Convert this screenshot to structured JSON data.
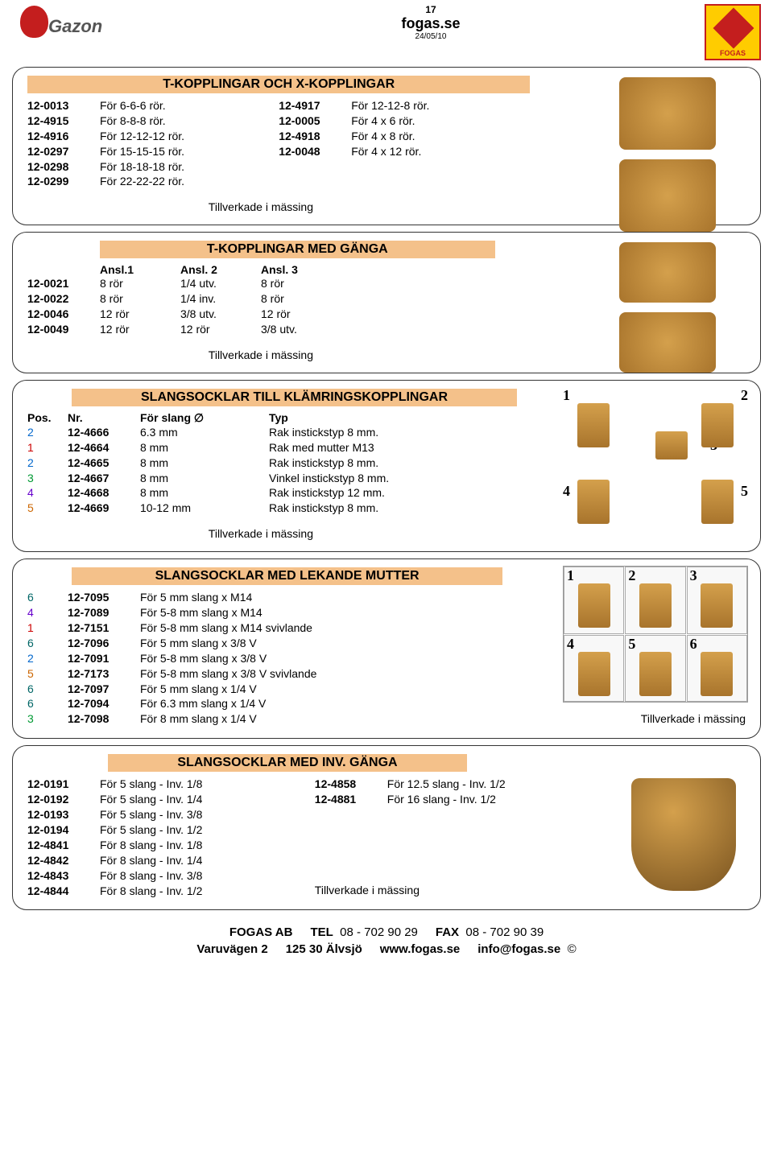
{
  "header": {
    "page_num": "17",
    "site": "fogas.se",
    "date": "24/05/10",
    "gazon_text": "Gazon",
    "fogas_label": "FOGAS"
  },
  "section1": {
    "title": "T-KOPPLINGAR OCH X-KOPPLINGAR",
    "left": [
      {
        "code": "12-0013",
        "desc": "För 6-6-6 rör."
      },
      {
        "code": "12-4915",
        "desc": "För 8-8-8 rör."
      },
      {
        "code": "12-4916",
        "desc": "För 12-12-12 rör."
      },
      {
        "code": "12-0297",
        "desc": "För 15-15-15 rör."
      },
      {
        "code": "12-0298",
        "desc": "För 18-18-18 rör."
      },
      {
        "code": "12-0299",
        "desc": "För 22-22-22 rör."
      }
    ],
    "right": [
      {
        "code": "12-4917",
        "desc": "För 12-12-8 rör."
      },
      {
        "code": "12-0005",
        "desc": "För 4 x 6 rör."
      },
      {
        "code": "12-4918",
        "desc": "För 4 x 8 rör."
      },
      {
        "code": "12-0048",
        "desc": "För 4 x 12 rör."
      }
    ],
    "note": "Tillverkade i mässing"
  },
  "section2": {
    "title": "T-KOPPLINGAR MED GÄNGA",
    "headers": [
      "Ansl.1",
      "Ansl. 2",
      "Ansl. 3"
    ],
    "rows": [
      {
        "code": "12-0021",
        "c1": "8 rör",
        "c2": "1/4 utv.",
        "c3": "8 rör"
      },
      {
        "code": "12-0022",
        "c1": "8 rör",
        "c2": "1/4 inv.",
        "c3": "8 rör"
      },
      {
        "code": "12-0046",
        "c1": "12 rör",
        "c2": "3/8 utv.",
        "c3": "12 rör"
      },
      {
        "code": "12-0049",
        "c1": "12 rör",
        "c2": "12 rör",
        "c3": "3/8 utv."
      }
    ],
    "note": "Tillverkade i mässing"
  },
  "section3": {
    "title": "SLANGSOCKLAR TILL KLÄMRINGSKOPPLINGAR",
    "col_headers": {
      "pos": "Pos.",
      "nr": "Nr.",
      "slang": "För slang ∅",
      "typ": "Typ"
    },
    "rows": [
      {
        "pos": "2",
        "nr": "12-4666",
        "slang": "6.3 mm",
        "typ": "Rak instickstyp 8 mm."
      },
      {
        "pos": "1",
        "nr": "12-4664",
        "slang": "8 mm",
        "typ": "Rak med mutter M13"
      },
      {
        "pos": "2",
        "nr": "12-4665",
        "slang": "8 mm",
        "typ": "Rak instickstyp 8 mm."
      },
      {
        "pos": "3",
        "nr": "12-4667",
        "slang": "8 mm",
        "typ": "Vinkel instickstyp 8 mm."
      },
      {
        "pos": "4",
        "nr": "12-4668",
        "slang": "8 mm",
        "typ": "Rak instickstyp 12 mm."
      },
      {
        "pos": "5",
        "nr": "12-4669",
        "slang": "10-12 mm",
        "typ": "Rak instickstyp 8 mm."
      }
    ],
    "grid_nums": [
      "1",
      "2",
      "3",
      "4",
      "5"
    ],
    "note": "Tillverkade i mässing"
  },
  "section4": {
    "title": "SLANGSOCKLAR MED LEKANDE MUTTER",
    "rows": [
      {
        "pos": "6",
        "nr": "12-7095",
        "desc": "För 5 mm slang x M14"
      },
      {
        "pos": "4",
        "nr": "12-7089",
        "desc": "För 5-8 mm slang x M14"
      },
      {
        "pos": "1",
        "nr": "12-7151",
        "desc": "För 5-8 mm slang x M14 svivlande"
      },
      {
        "pos": "6",
        "nr": "12-7096",
        "desc": "För 5 mm slang x 3/8 V"
      },
      {
        "pos": "2",
        "nr": "12-7091",
        "desc": "För 5-8 mm slang x 3/8 V"
      },
      {
        "pos": "5",
        "nr": "12-7173",
        "desc": "För 5-8 mm slang x 3/8 V svivlande"
      },
      {
        "pos": "6",
        "nr": "12-7097",
        "desc": "För 5 mm slang x 1/4 V"
      },
      {
        "pos": "6",
        "nr": "12-7094",
        "desc": "För 6.3 mm slang x 1/4 V"
      },
      {
        "pos": "3",
        "nr": "12-7098",
        "desc": "För 8 mm slang x 1/4 V"
      }
    ],
    "grid_nums": [
      "1",
      "2",
      "3",
      "4",
      "5",
      "6"
    ],
    "note": "Tillverkade i mässing"
  },
  "section5": {
    "title": "SLANGSOCKLAR MED INV. GÄNGA",
    "left": [
      {
        "code": "12-0191",
        "desc": "För 5 slang - Inv. 1/8"
      },
      {
        "code": "12-0192",
        "desc": "För 5 slang - Inv. 1/4"
      },
      {
        "code": "12-0193",
        "desc": "För 5 slang - Inv. 3/8"
      },
      {
        "code": "12-0194",
        "desc": "För 5 slang - Inv. 1/2"
      },
      {
        "code": "12-4841",
        "desc": "För 8 slang - Inv. 1/8"
      },
      {
        "code": "12-4842",
        "desc": "För 8 slang - Inv. 1/4"
      },
      {
        "code": "12-4843",
        "desc": "För 8 slang - Inv. 3/8"
      },
      {
        "code": "12-4844",
        "desc": "För 8 slang - Inv. 1/2"
      }
    ],
    "right": [
      {
        "code": "12-4858",
        "desc": "För 12.5 slang - Inv. 1/2"
      },
      {
        "code": "12-4881",
        "desc": "För 16 slang - Inv. 1/2"
      }
    ],
    "note": "Tillverkade i mässing"
  },
  "footer": {
    "line1": {
      "company": "FOGAS AB",
      "tel_label": "TEL",
      "tel": "08 - 702 90 29",
      "fax_label": "FAX",
      "fax": "08 - 702 90 39"
    },
    "line2": {
      "addr1": "Varuvägen 2",
      "addr2": "125 30 Älvsjö",
      "web": "www.fogas.se",
      "email": "info@fogas.se",
      "copy": "©"
    }
  },
  "colors": {
    "section_bg": "#f4c18a",
    "border": "#333333",
    "fogas_yellow": "#ffcc00",
    "fogas_red": "#c41e1e"
  }
}
